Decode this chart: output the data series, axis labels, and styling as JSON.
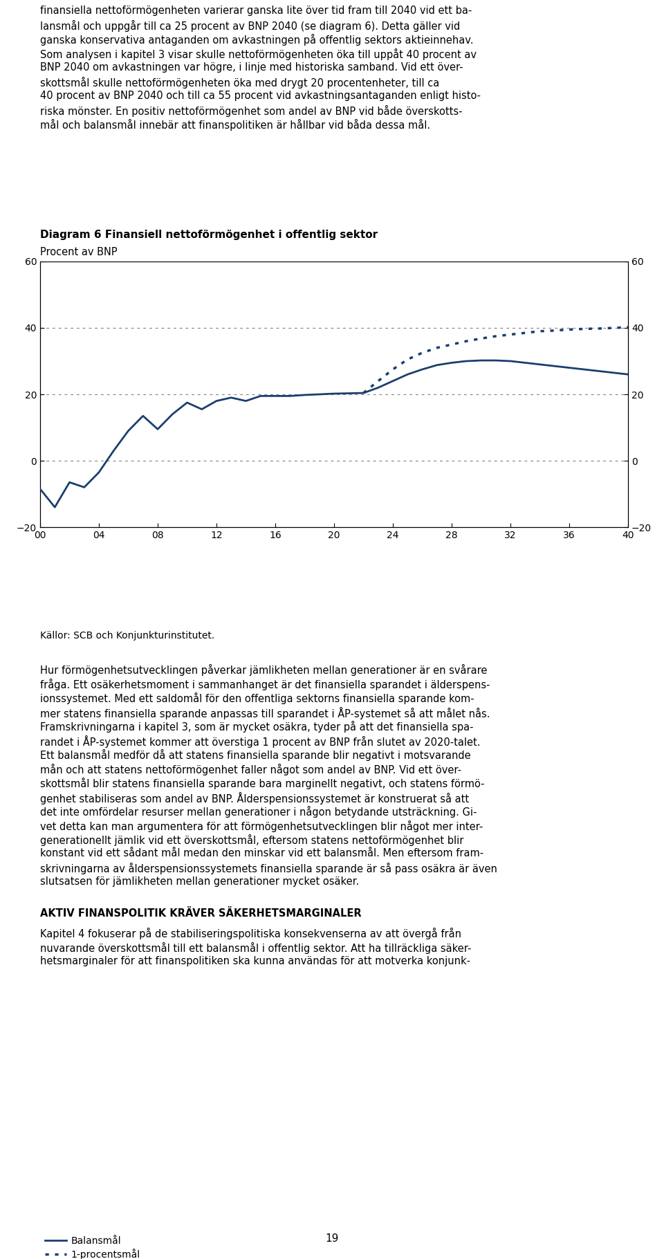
{
  "title": "Diagram 6 Finansiell nettoförmögenhet i offentlig sektor",
  "ylabel": "Procent av BNP",
  "source": "Källor: SCB och Konjunkturinstitutet.",
  "ylim": [
    -20,
    60
  ],
  "yticks": [
    -20,
    0,
    20,
    40,
    60
  ],
  "line_color": "#1a3f6f",
  "background_color": "#ffffff",
  "legend_solid": "Balansmål",
  "legend_dashed": "1-procentsmål",
  "years_hist": [
    2000,
    2001,
    2002,
    2003,
    2004,
    2005,
    2006,
    2007,
    2008,
    2009,
    2010,
    2011,
    2012,
    2013,
    2014,
    2015,
    2016,
    2017,
    2018,
    2019,
    2020,
    2021,
    2022
  ],
  "values_hist": [
    -8.5,
    -14.0,
    -6.5,
    -8.0,
    -3.5,
    3.0,
    9.0,
    13.5,
    9.5,
    14.0,
    17.5,
    15.5,
    18.0,
    19.0,
    18.0,
    19.5,
    19.5,
    19.5,
    19.8,
    20.0,
    20.2,
    20.3,
    20.4
  ],
  "years_proj_solid": [
    2022,
    2023,
    2024,
    2025,
    2026,
    2027,
    2028,
    2029,
    2030,
    2031,
    2032,
    2033,
    2034,
    2035,
    2036,
    2037,
    2038,
    2039,
    2040
  ],
  "values_proj_solid": [
    20.4,
    22.0,
    24.0,
    26.0,
    27.5,
    28.8,
    29.5,
    30.0,
    30.2,
    30.2,
    30.0,
    29.5,
    29.0,
    28.5,
    28.0,
    27.5,
    27.0,
    26.5,
    26.0
  ],
  "years_proj_dashed": [
    2022,
    2023,
    2024,
    2025,
    2026,
    2027,
    2028,
    2029,
    2030,
    2031,
    2032,
    2033,
    2034,
    2035,
    2036,
    2037,
    2038,
    2039,
    2040
  ],
  "values_proj_dashed": [
    20.4,
    24.0,
    27.5,
    30.5,
    32.5,
    34.0,
    35.0,
    36.0,
    36.8,
    37.5,
    38.0,
    38.5,
    39.0,
    39.2,
    39.5,
    39.7,
    39.8,
    40.0,
    40.2
  ],
  "xtick_labels": [
    "00",
    "04",
    "08",
    "12",
    "16",
    "20",
    "24",
    "28",
    "32",
    "36",
    "40"
  ],
  "xtick_years": [
    2000,
    2004,
    2008,
    2012,
    2016,
    2020,
    2024,
    2028,
    2032,
    2036,
    2040
  ],
  "body_text_top": [
    "finansiella nettoförmögenheten varierar ganska lite över tid fram till 2040 vid ett ba-",
    "lansmål och uppgår till ca 25 procent av BNP 2040 (se diagram 6). Detta gäller vid",
    "ganska konservativa antaganden om avkastningen på offentlig sektors aktieinnehav.",
    "Som analysen i kapitel 3 visar skulle nettoförmögenheten öka till uppåt 40 procent av",
    "BNP 2040 om avkastningen var högre, i linje med historiska samband. Vid ett över-",
    "skottsmål skulle nettoförmögenheten öka med drygt 20 procentenheter, till ca",
    "40 procent av BNP 2040 och till ca 55 procent vid avkastningsantaganden enligt histo-",
    "riska mönster. En positiv nettoförmögenhet som andel av BNP vid både överskotts-",
    "mål och balansmål innebär att finanspolitiken är hållbar vid båda dessa mål."
  ],
  "body_text_bottom": [
    "Hur förmögenhetsutvecklingen påverkar jämlikheten mellan generationer är en svårare",
    "fråga. Ett osäkerhetsmoment i sammanhanget är det finansiella sparandet i älderspens-",
    "ionssystemet. Med ett saldomål för den offentliga sektorns finansiella sparande kom-",
    "mer statens finansiella sparande anpassas till sparandet i ÅP-systemet så att målet nås.",
    "Framskrivningarna i kapitel 3, som är mycket osäkra, tyder på att det finansiella spa-",
    "randet i ÅP-systemet kommer att överstiga 1 procent av BNP från slutet av 2020-talet.",
    "Ett balansmål medför då att statens finansiella sparande blir negativt i motsvarande",
    "mån och att statens nettoförmögenhet faller något som andel av BNP. Vid ett över-",
    "skottsmål blir statens finansiella sparande bara marginellt negativt, och statens förmö-",
    "genhet stabiliseras som andel av BNP. Ålderspensionssystemet är konstruerat så att",
    "det inte omfördelar resurser mellan generationer i någon betydande utsträckning. Gi-",
    "vet detta kan man argumentera för att förmögenhetsutvecklingen blir något mer inter-",
    "generationellt jämlik vid ett överskottsmål, eftersom statens nettoförmögenhet blir",
    "konstant vid ett sådant mål medan den minskar vid ett balansmål. Men eftersom fram-",
    "skrivningarna av ålderspensionssystemets finansiella sparande är så pass osäkra är även",
    "slutsatsen för jämlikheten mellan generationer mycket osäker."
  ],
  "section_header": "AKTIV FINANSPOLITIK KRÄVER SÄKERHETSMARGINALER",
  "body_text_last": [
    "Kapitel 4 fokuserar på de stabiliseringspolitiska konsekvenserna av att övergå från",
    "nuvarande överskottsmål till ett balansmål i offentlig sektor. Att ha tillräckliga säker-",
    "hetsmarginaler för att finanspolitiken ska kunna användas för att motverka konjunk-"
  ],
  "page_num": "19"
}
